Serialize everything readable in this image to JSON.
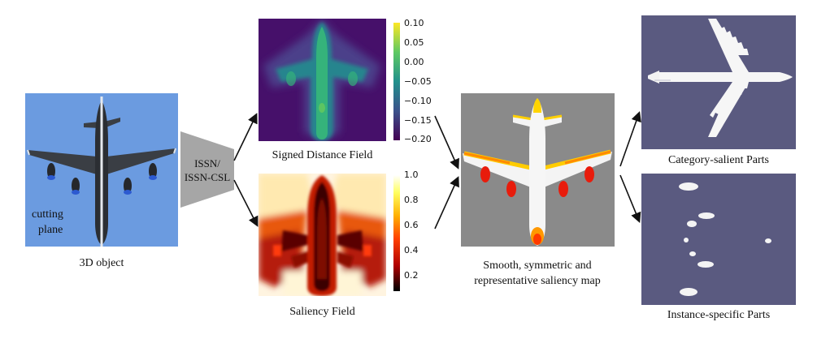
{
  "object_panel": {
    "caption": "3D object",
    "plane_label_line1": "cutting",
    "plane_label_line2": "plane",
    "bg_color": "#6b9be0",
    "plane_color": "#2b2e33"
  },
  "network": {
    "label_line1": "ISSN/",
    "label_line2": "ISSN-CSL",
    "color": "#a6a6a6"
  },
  "sdf_panel": {
    "caption": "Signed Distance Field",
    "colorbar_ticks": [
      "0.10",
      "0.05",
      "0.00",
      "−0.05",
      "−0.10",
      "−0.15",
      "−0.20"
    ],
    "colormap": "viridis"
  },
  "saliency_panel": {
    "caption": "Saliency Field",
    "colorbar_ticks": [
      "1.0",
      "0.8",
      "0.6",
      "0.4",
      "0.2"
    ],
    "colormap": "hot"
  },
  "saliency_map": {
    "caption_line1": "Smooth, symmetric and",
    "caption_line2": "representative saliency map",
    "bg_color": "#8a8a8a"
  },
  "category_parts": {
    "caption": "Category-salient Parts",
    "bg_color": "#5a5a80"
  },
  "instance_parts": {
    "caption": "Instance-specific Parts",
    "bg_color": "#5a5a80"
  }
}
